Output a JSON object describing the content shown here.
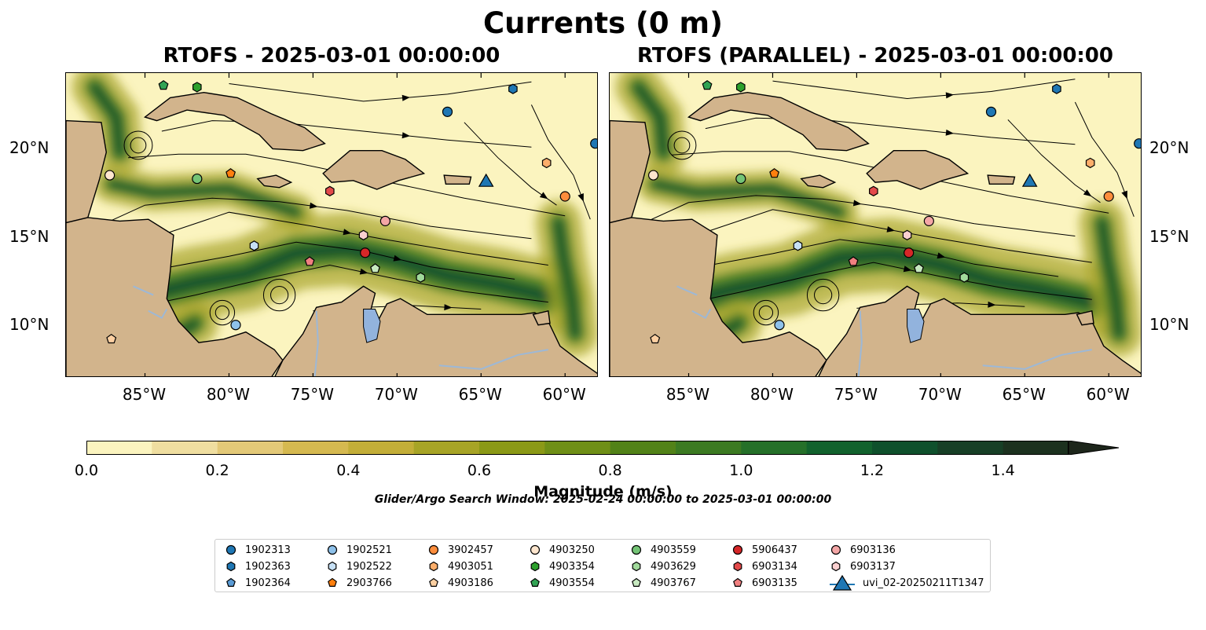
{
  "figure": {
    "title": "Currents (0 m)",
    "panels": [
      {
        "title": "RTOFS - 2025-03-01 00:00:00"
      },
      {
        "title": "RTOFS (PARALLEL) - 2025-03-01 00:00:00"
      }
    ],
    "lon_ticks": [
      {
        "label": "85°W",
        "value": -85
      },
      {
        "label": "80°W",
        "value": -80
      },
      {
        "label": "75°W",
        "value": -75
      },
      {
        "label": "70°W",
        "value": -70
      },
      {
        "label": "65°W",
        "value": -65
      },
      {
        "label": "60°W",
        "value": -60
      }
    ],
    "lat_ticks": [
      {
        "label": "20°N",
        "value": 20
      },
      {
        "label": "15°N",
        "value": 15
      },
      {
        "label": "10°N",
        "value": 10
      }
    ],
    "extent": {
      "lon": [
        -89.7,
        -58.0
      ],
      "lat": [
        7.0,
        24.3
      ]
    },
    "colorbar": {
      "title": "Magnitude (m/s)",
      "ticks": [
        "0.0",
        "0.2",
        "0.4",
        "0.6",
        "0.8",
        "1.0",
        "1.2",
        "1.4"
      ],
      "range": [
        0,
        1.5
      ],
      "extend": "max",
      "colors": [
        "#fbf4bf",
        "#efdea0",
        "#e3c978",
        "#d5b950",
        "#c3ae38",
        "#a7a426",
        "#8b9916",
        "#6f8f16",
        "#528218",
        "#3c7a22",
        "#257029",
        "#12622d",
        "#0f502c",
        "#173f26",
        "#1c311f",
        "#1d261b"
      ]
    },
    "search_window": "Glider/Argo Search Window: 2025-02-24 00:00:00 to 2025-03-01 00:00:00"
  },
  "legend": {
    "columns": [
      [
        {
          "label": "1902313",
          "marker": "circle",
          "color": "#1f77b4"
        },
        {
          "label": "1902363",
          "marker": "hexagon",
          "color": "#1f77b4"
        },
        {
          "label": "1902364",
          "marker": "pentagon",
          "color": "#5a9bd5"
        }
      ],
      [
        {
          "label": "1902521",
          "marker": "circle",
          "color": "#8ec1ea"
        },
        {
          "label": "1902522",
          "marker": "hexagon",
          "color": "#c6e0f5"
        },
        {
          "label": "2903766",
          "marker": "pentagon",
          "color": "#ff7f0e"
        }
      ],
      [
        {
          "label": "3902457",
          "marker": "circle",
          "color": "#fd8d3c"
        },
        {
          "label": "4903051",
          "marker": "hexagon",
          "color": "#fdae6b"
        },
        {
          "label": "4903186",
          "marker": "pentagon",
          "color": "#fdd0a2"
        }
      ],
      [
        {
          "label": "4903250",
          "marker": "circle",
          "color": "#fee6ce"
        },
        {
          "label": "4903354",
          "marker": "hexagon",
          "color": "#2ca02c"
        },
        {
          "label": "4903554",
          "marker": "pentagon",
          "color": "#31a354"
        }
      ],
      [
        {
          "label": "4903559",
          "marker": "circle",
          "color": "#74c476"
        },
        {
          "label": "4903629",
          "marker": "hexagon",
          "color": "#a1d99b"
        },
        {
          "label": "4903767",
          "marker": "pentagon",
          "color": "#c7e9c0"
        }
      ],
      [
        {
          "label": "5906437",
          "marker": "circle",
          "color": "#d62728"
        },
        {
          "label": "6903134",
          "marker": "hexagon",
          "color": "#e34a4a"
        },
        {
          "label": "6903135",
          "marker": "pentagon",
          "color": "#f08080"
        }
      ],
      [
        {
          "label": "6903136",
          "marker": "circle",
          "color": "#f4a6a6"
        },
        {
          "label": "6903137",
          "marker": "hexagon",
          "color": "#fbd0d0"
        },
        {
          "label": "uvi_02-20250211T1347",
          "marker": "triangle-line",
          "color": "#1f77b4"
        }
      ]
    ]
  },
  "markers": [
    {
      "id": "1902313",
      "lon": -67.0,
      "lat": 22.1,
      "marker": "circle",
      "color": "#1f77b4"
    },
    {
      "id": "1902313",
      "lon": -58.2,
      "lat": 20.3,
      "marker": "circle",
      "color": "#1f77b4"
    },
    {
      "id": "1902363",
      "lon": -63.1,
      "lat": 23.4,
      "marker": "hexagon",
      "color": "#1f77b4"
    },
    {
      "id": "1902521",
      "lon": -79.6,
      "lat": 10.0,
      "marker": "circle",
      "color": "#8ec1ea"
    },
    {
      "id": "1902522",
      "lon": -78.5,
      "lat": 14.5,
      "marker": "hexagon",
      "color": "#c6e0f5"
    },
    {
      "id": "2903766",
      "lon": -79.9,
      "lat": 18.6,
      "marker": "pentagon",
      "color": "#ff7f0e"
    },
    {
      "id": "3902457",
      "lon": -60.0,
      "lat": 17.3,
      "marker": "circle",
      "color": "#fd8d3c"
    },
    {
      "id": "4903051",
      "lon": -61.1,
      "lat": 19.2,
      "marker": "hexagon",
      "color": "#fdae6b"
    },
    {
      "id": "4903186",
      "lon": -87.0,
      "lat": 9.2,
      "marker": "pentagon",
      "color": "#fdd0a2"
    },
    {
      "id": "4903250",
      "lon": -87.1,
      "lat": 18.5,
      "marker": "circle",
      "color": "#fee6ce"
    },
    {
      "id": "4903354",
      "lon": -81.9,
      "lat": 23.5,
      "marker": "hexagon",
      "color": "#2ca02c"
    },
    {
      "id": "4903554",
      "lon": -83.9,
      "lat": 23.6,
      "marker": "pentagon",
      "color": "#31a354"
    },
    {
      "id": "4903559",
      "lon": -81.9,
      "lat": 18.3,
      "marker": "circle",
      "color": "#74c476"
    },
    {
      "id": "4903629",
      "lon": -68.6,
      "lat": 12.7,
      "marker": "hexagon",
      "color": "#a1d99b"
    },
    {
      "id": "4903767",
      "lon": -71.3,
      "lat": 13.2,
      "marker": "pentagon",
      "color": "#c7e9c0"
    },
    {
      "id": "5906437",
      "lon": -71.9,
      "lat": 14.1,
      "marker": "circle",
      "color": "#d62728"
    },
    {
      "id": "6903134",
      "lon": -74.0,
      "lat": 17.6,
      "marker": "hexagon",
      "color": "#e34a4a"
    },
    {
      "id": "6903135",
      "lon": -75.2,
      "lat": 13.6,
      "marker": "pentagon",
      "color": "#f08080"
    },
    {
      "id": "6903136",
      "lon": -70.7,
      "lat": 15.9,
      "marker": "circle",
      "color": "#f4a6a6"
    },
    {
      "id": "6903137",
      "lon": -72.0,
      "lat": 15.1,
      "marker": "hexagon",
      "color": "#fbd0d0"
    },
    {
      "id": "uvi_02-20250211T1347",
      "lon": -64.7,
      "lat": 18.1,
      "marker": "triangle",
      "color": "#1f77b4"
    }
  ],
  "colors": {
    "land": "#d2b48c",
    "ocean_low": "#fbf4bf",
    "current_high": "#0f502c",
    "river": "#9db8d6",
    "lake": "#92b3dd",
    "streamline": "#000000"
  }
}
